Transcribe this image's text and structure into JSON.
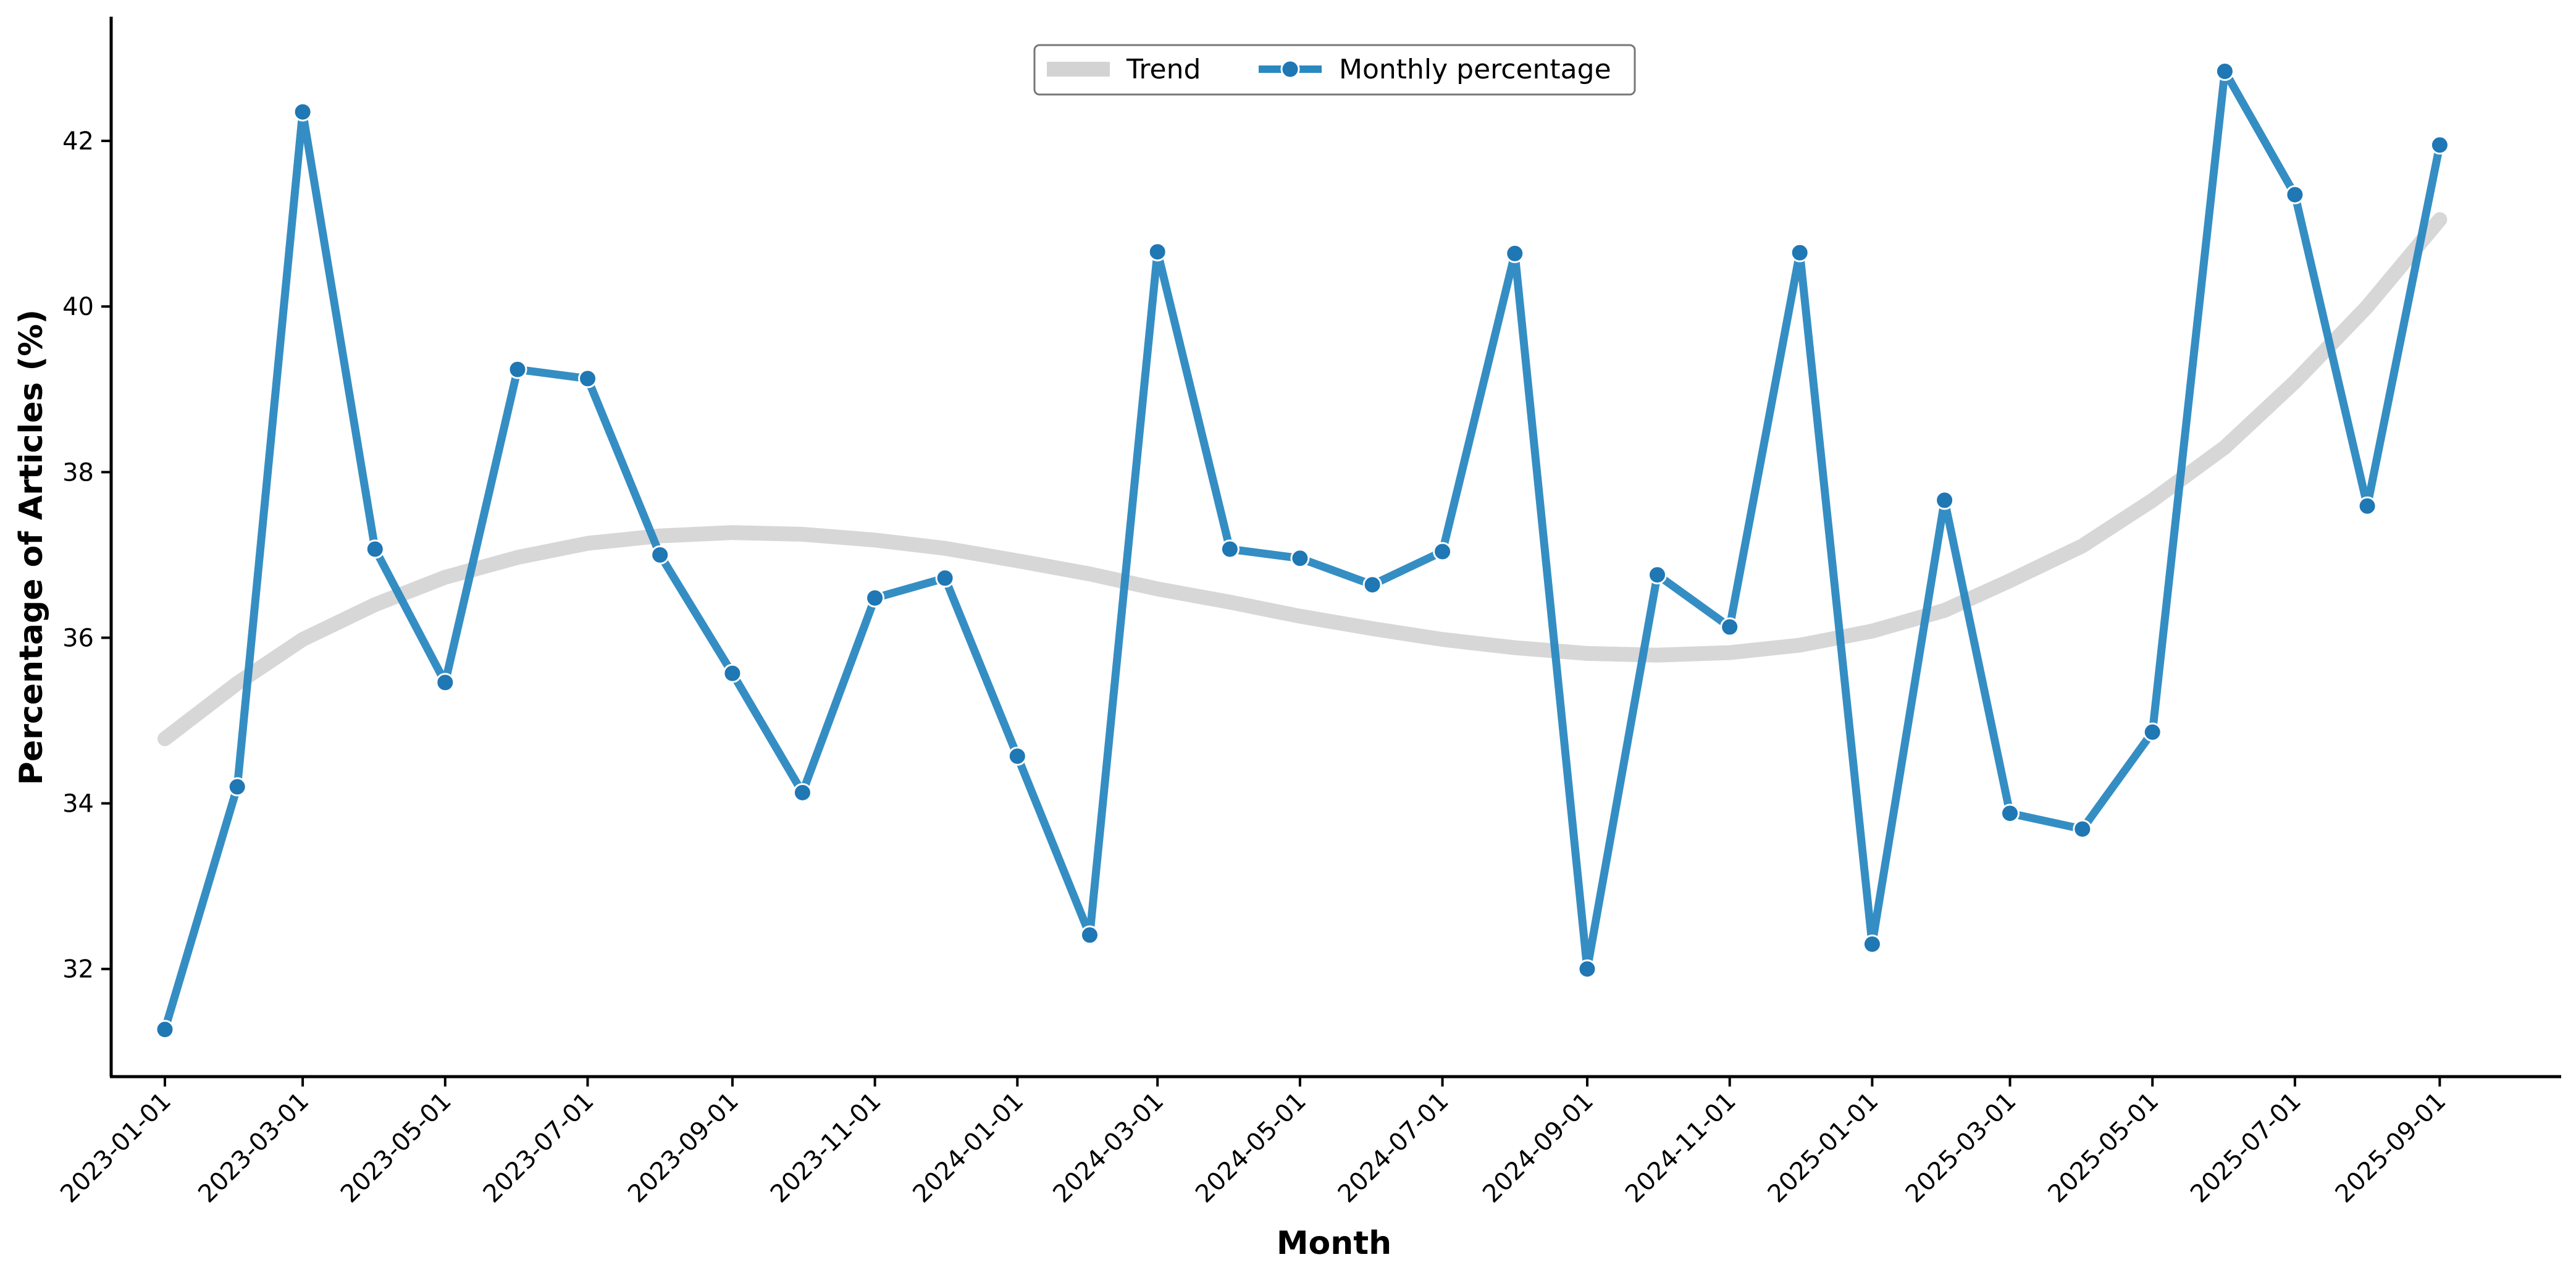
{
  "chart_data": {
    "type": "line",
    "title": "",
    "xlabel": "Month",
    "ylabel": "Percentage of Articles (%)",
    "x": [
      "2023-01-01",
      "2023-02-01",
      "2023-03-01",
      "2023-04-01",
      "2023-05-01",
      "2023-06-01",
      "2023-07-01",
      "2023-08-01",
      "2023-09-01",
      "2023-10-01",
      "2023-11-01",
      "2023-12-01",
      "2024-01-01",
      "2024-02-01",
      "2024-03-01",
      "2024-04-01",
      "2024-05-01",
      "2024-06-01",
      "2024-07-01",
      "2024-08-01",
      "2024-09-01",
      "2024-10-01",
      "2024-11-01",
      "2024-12-01",
      "2025-01-01",
      "2025-02-01",
      "2025-03-01",
      "2025-04-01",
      "2025-05-01",
      "2025-06-01",
      "2025-07-01",
      "2025-08-01",
      "2025-09-01"
    ],
    "x_tick_labels": [
      "2023-01-01",
      "2023-03-01",
      "2023-05-01",
      "2023-07-01",
      "2023-09-01",
      "2023-11-01",
      "2024-01-01",
      "2024-03-01",
      "2024-05-01",
      "2024-07-01",
      "2024-09-01",
      "2024-11-01",
      "2025-01-01",
      "2025-03-01",
      "2025-05-01",
      "2025-07-01",
      "2025-09-01"
    ],
    "y_ticks": [
      32,
      34,
      36,
      38,
      40,
      42
    ],
    "ylim": [
      30.7,
      43.5
    ],
    "xlim": [
      "2022-12-09",
      "2025-10-23"
    ],
    "grid": false,
    "legend_position": "top-center",
    "series": [
      {
        "name": "Trend",
        "color": "#d3d3d3",
        "values": [
          34.78,
          35.45,
          35.98,
          36.4,
          36.73,
          36.97,
          37.14,
          37.23,
          37.27,
          37.25,
          37.18,
          37.08,
          36.93,
          36.77,
          36.59,
          36.43,
          36.26,
          36.11,
          35.98,
          35.88,
          35.81,
          35.79,
          35.82,
          35.91,
          36.08,
          36.33,
          36.69,
          37.11,
          37.66,
          38.3,
          39.09,
          40.0,
          41.05
        ]
      },
      {
        "name": "Monthly percentage",
        "color": "#2a88c0",
        "values": [
          31.27,
          34.2,
          42.35,
          37.07,
          35.46,
          39.24,
          39.13,
          37.0,
          35.57,
          34.13,
          36.48,
          36.72,
          34.57,
          32.41,
          40.66,
          37.07,
          36.96,
          36.64,
          37.04,
          40.64,
          32.0,
          36.76,
          36.13,
          40.65,
          32.3,
          37.66,
          33.88,
          33.69,
          34.86,
          42.84,
          41.35,
          37.59,
          41.95
        ]
      }
    ]
  }
}
